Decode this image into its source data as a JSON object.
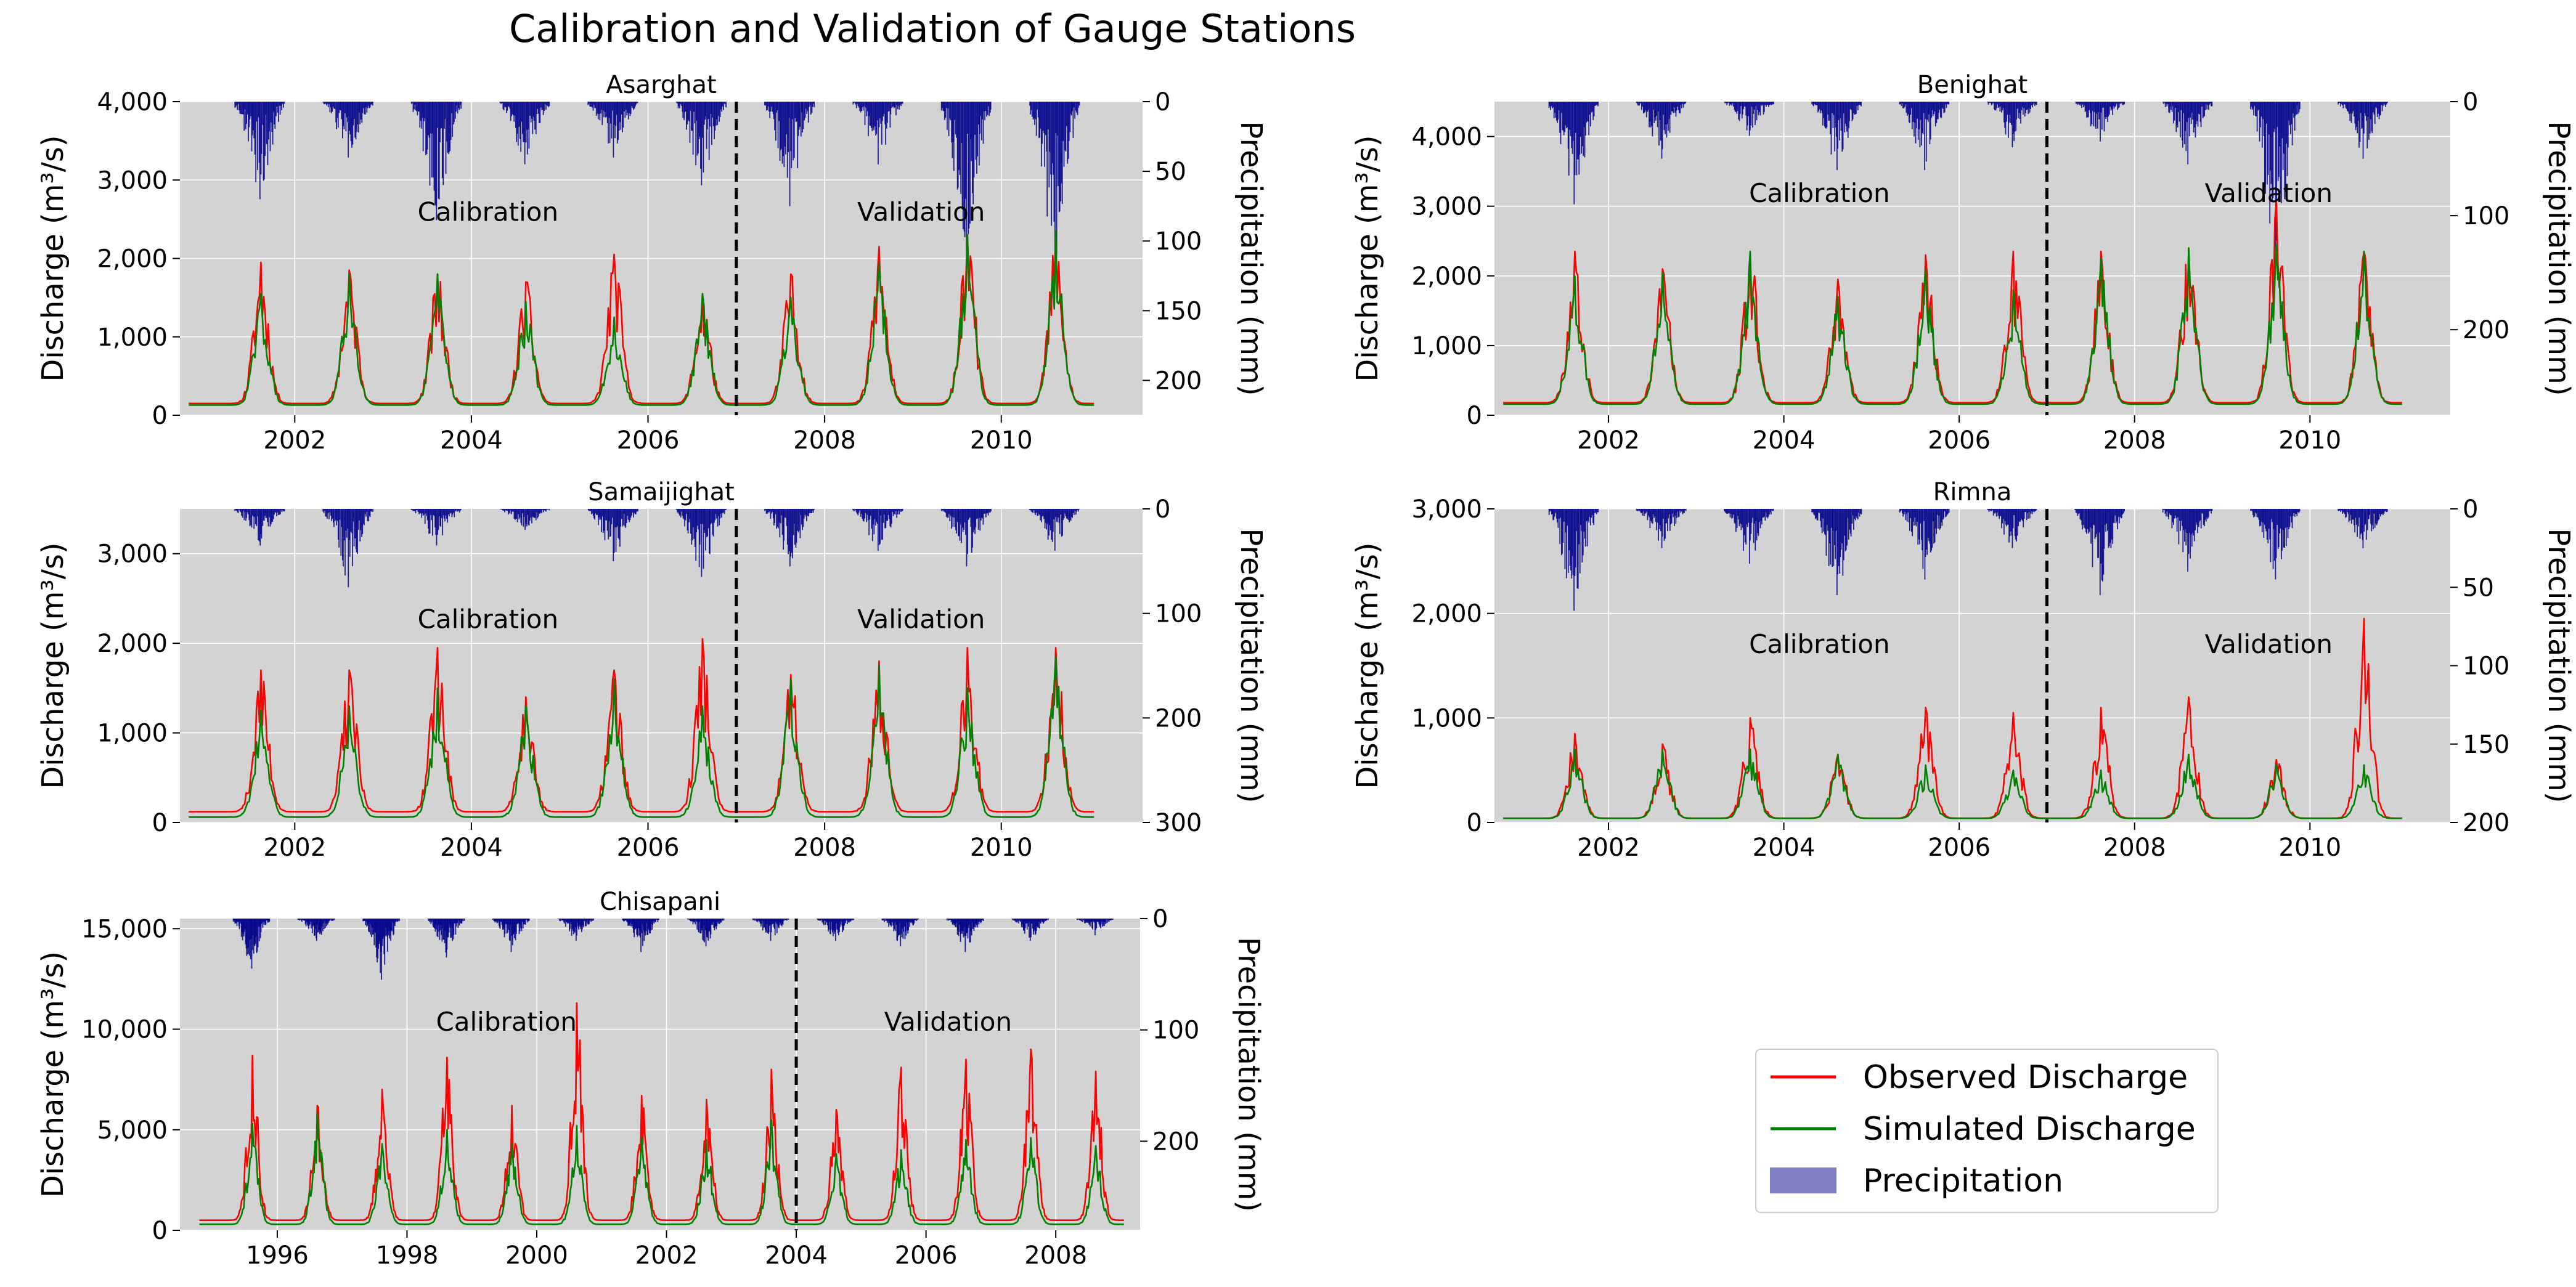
{
  "figure": {
    "title": "Calibration and Validation of Gauge Stations"
  },
  "legend": {
    "placement": "lower-right",
    "items": [
      {
        "label": "Observed Discharge",
        "color": "#ff0000",
        "kind": "line"
      },
      {
        "label": "Simulated Discharge",
        "color": "#008000",
        "kind": "line"
      },
      {
        "label": "Precipitation",
        "color": "#00008b",
        "kind": "bar"
      }
    ]
  },
  "chart_data": [
    {
      "type": "line",
      "title": "Asarghat",
      "ylabel": "Discharge (m³/s)",
      "y2label": "Precipitation (mm)",
      "xlim": [
        2000.7,
        2011.6
      ],
      "ylim": [
        0,
        4000
      ],
      "y2lim": [
        0,
        225
      ],
      "xticks": [
        2002,
        2004,
        2006,
        2008,
        2010
      ],
      "yticks": [
        0,
        1000,
        2000,
        3000,
        4000
      ],
      "y2ticks": [
        0,
        50,
        100,
        150,
        200
      ],
      "split_year": 2007,
      "annotations": [
        "Calibration",
        "Validation"
      ],
      "grid": true,
      "series": [
        {
          "name": "Observed Discharge",
          "color": "#ff0000",
          "annual_peaks": [
            1950,
            1850,
            1800,
            1700,
            2050,
            1550,
            1800,
            2150,
            2300,
            2300
          ],
          "baseflow": 150
        },
        {
          "name": "Simulated Discharge",
          "color": "#008000",
          "annual_peaks": [
            1550,
            1800,
            1800,
            1450,
            1250,
            1550,
            1500,
            1950,
            2300,
            2350
          ],
          "baseflow": 130
        },
        {
          "name": "Precipitation",
          "color": "#00008b",
          "annual_max": [
            70,
            40,
            85,
            45,
            40,
            60,
            75,
            45,
            110,
            130
          ]
        }
      ]
    },
    {
      "type": "line",
      "title": "Benighat",
      "ylabel": "Discharge (m³/s)",
      "y2label": "Precipitation (mm)",
      "xlim": [
        2000.7,
        2011.6
      ],
      "ylim": [
        0,
        4500
      ],
      "y2lim": [
        0,
        275
      ],
      "xticks": [
        2002,
        2004,
        2006,
        2008,
        2010
      ],
      "yticks": [
        0,
        1000,
        2000,
        3000,
        4000
      ],
      "y2ticks": [
        0,
        100,
        200
      ],
      "split_year": 2007,
      "annotations": [
        "Calibration",
        "Validation"
      ],
      "grid": true,
      "series": [
        {
          "name": "Observed Discharge",
          "color": "#ff0000",
          "annual_peaks": [
            2350,
            2100,
            2300,
            1950,
            2300,
            2350,
            2350,
            2400,
            3050,
            2350
          ],
          "baseflow": 180
        },
        {
          "name": "Simulated Discharge",
          "color": "#008000",
          "annual_peaks": [
            2000,
            2050,
            2350,
            1700,
            2100,
            1800,
            2250,
            2400,
            2450,
            2350
          ],
          "baseflow": 160
        },
        {
          "name": "Precipitation",
          "color": "#00008b",
          "annual_max": [
            90,
            50,
            30,
            60,
            60,
            40,
            35,
            55,
            140,
            50
          ]
        }
      ]
    },
    {
      "type": "line",
      "title": "Samaijighat",
      "ylabel": "Discharge (m³/s)",
      "y2label": "Precipitation (mm)",
      "xlim": [
        2000.7,
        2011.6
      ],
      "ylim": [
        0,
        3500
      ],
      "y2lim": [
        0,
        300
      ],
      "xticks": [
        2002,
        2004,
        2006,
        2008,
        2010
      ],
      "yticks": [
        0,
        1000,
        2000,
        3000
      ],
      "y2ticks": [
        0,
        100,
        200,
        300
      ],
      "split_year": 2007,
      "annotations": [
        "Calibration",
        "Validation"
      ],
      "grid": true,
      "series": [
        {
          "name": "Observed Discharge",
          "color": "#ff0000",
          "annual_peaks": [
            1700,
            1700,
            1950,
            1400,
            1700,
            2050,
            1650,
            1800,
            1950,
            1950
          ],
          "baseflow": 120
        },
        {
          "name": "Simulated Discharge",
          "color": "#008000",
          "annual_peaks": [
            1250,
            1300,
            1500,
            1300,
            1600,
            1300,
            1600,
            1750,
            1500,
            1850
          ],
          "baseflow": 60
        },
        {
          "name": "Precipitation",
          "color": "#00008b",
          "annual_max": [
            35,
            75,
            35,
            20,
            50,
            65,
            55,
            40,
            55,
            40
          ]
        }
      ]
    },
    {
      "type": "line",
      "title": "Rimna",
      "ylabel": "Discharge (m³/s)",
      "y2label": "Precipitation (mm)",
      "xlim": [
        2000.7,
        2011.6
      ],
      "ylim": [
        0,
        3000
      ],
      "y2lim": [
        0,
        200
      ],
      "xticks": [
        2002,
        2004,
        2006,
        2008,
        2010
      ],
      "yticks": [
        0,
        1000,
        2000,
        3000
      ],
      "y2ticks": [
        0,
        50,
        100,
        150,
        200
      ],
      "split_year": 2007,
      "annotations": [
        "Calibration",
        "Validation"
      ],
      "grid": true,
      "series": [
        {
          "name": "Observed Discharge",
          "color": "#ff0000",
          "annual_peaks": [
            850,
            750,
            1000,
            650,
            1100,
            1050,
            1100,
            1200,
            600,
            1950
          ],
          "baseflow": 40
        },
        {
          "name": "Simulated Discharge",
          "color": "#008000",
          "annual_peaks": [
            700,
            700,
            700,
            650,
            550,
            500,
            500,
            650,
            550,
            550
          ],
          "baseflow": 40
        },
        {
          "name": "Precipitation",
          "color": "#00008b",
          "annual_max": [
            65,
            25,
            35,
            55,
            45,
            25,
            55,
            40,
            45,
            25
          ]
        }
      ]
    },
    {
      "type": "line",
      "title": "Chisapani",
      "ylabel": "Discharge (m³/s)",
      "y2label": "Precipitation (mm)",
      "xlim": [
        1994.5,
        2009.3
      ],
      "ylim": [
        0,
        15500
      ],
      "y2lim": [
        0,
        280
      ],
      "xticks": [
        1996,
        1998,
        2000,
        2002,
        2004,
        2006,
        2008
      ],
      "yticks": [
        0,
        5000,
        10000,
        15000
      ],
      "y2ticks": [
        0,
        100,
        200
      ],
      "split_year": 2004,
      "annotations": [
        "Calibration",
        "Validation"
      ],
      "grid": true,
      "series": [
        {
          "name": "Observed Discharge",
          "color": "#ff0000",
          "annual_peaks": [
            8700,
            6200,
            7000,
            8600,
            6200,
            11300,
            6700,
            6500,
            8000,
            6000,
            8100,
            8500,
            9000,
            7900
          ],
          "baseflow": 500
        },
        {
          "name": "Simulated Discharge",
          "color": "#008000",
          "annual_peaks": [
            5300,
            5800,
            4300,
            5000,
            4300,
            5200,
            4600,
            4500,
            5500,
            3800,
            4000,
            4500,
            4600,
            4200
          ],
          "baseflow": 300
        },
        {
          "name": "Precipitation",
          "color": "#00008b",
          "annual_max": [
            45,
            20,
            55,
            35,
            30,
            20,
            30,
            25,
            20,
            20,
            25,
            30,
            20,
            15
          ]
        }
      ]
    }
  ]
}
